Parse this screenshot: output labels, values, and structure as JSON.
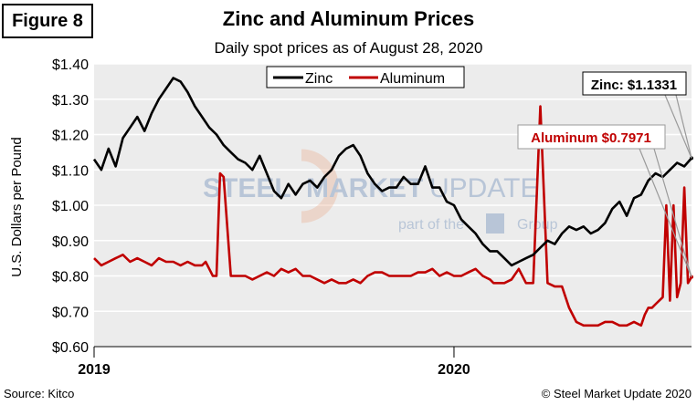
{
  "figure_label": "Figure 8",
  "source": "Source: Kitco",
  "copyright": "© Steel Market Update 2020",
  "watermark": {
    "brand_a": "STEEL",
    "brand_b": "MARKET",
    "brand_c": "UPDATE",
    "tagline_a": "part of the",
    "tagline_b": "Group"
  },
  "colors": {
    "zinc": "#000000",
    "aluminum": "#c00000",
    "plot_bg": "#ececec"
  },
  "chart_data": {
    "type": "line",
    "title": "Zinc and Aluminum Prices",
    "subtitle": "Daily spot prices as of August 28, 2020",
    "ylabel": "U.S. Dollars per Pound",
    "xlabel": "",
    "ylim": [
      0.6,
      1.4
    ],
    "xlim": [
      2019.0,
      2020.66
    ],
    "y_ticks": [
      0.6,
      0.7,
      0.8,
      0.9,
      1.0,
      1.1,
      1.2,
      1.3,
      1.4
    ],
    "y_tick_labels": [
      "$0.60",
      "$0.70",
      "$0.80",
      "$0.90",
      "$1.00",
      "$1.10",
      "$1.20",
      "$1.30",
      "$1.40"
    ],
    "x_ticks": [
      2019.0,
      2020.0
    ],
    "x_tick_labels": [
      "2019",
      "2020"
    ],
    "legend": {
      "position": "top-center",
      "entries": [
        "Zinc",
        "Aluminum"
      ]
    },
    "annotations": [
      {
        "text": "Zinc: $1.1331",
        "series": "Zinc",
        "value": 1.1331
      },
      {
        "text": "Aluminum $0.7971",
        "series": "Aluminum",
        "value": 0.7971
      }
    ],
    "series": [
      {
        "name": "Zinc",
        "x": [
          2019.0,
          2019.02,
          2019.04,
          2019.06,
          2019.08,
          2019.1,
          2019.12,
          2019.14,
          2019.16,
          2019.18,
          2019.2,
          2019.22,
          2019.24,
          2019.26,
          2019.28,
          2019.3,
          2019.32,
          2019.34,
          2019.36,
          2019.38,
          2019.4,
          2019.42,
          2019.44,
          2019.46,
          2019.48,
          2019.5,
          2019.52,
          2019.54,
          2019.56,
          2019.58,
          2019.6,
          2019.62,
          2019.64,
          2019.66,
          2019.68,
          2019.7,
          2019.72,
          2019.74,
          2019.76,
          2019.78,
          2019.8,
          2019.82,
          2019.84,
          2019.86,
          2019.88,
          2019.9,
          2019.92,
          2019.94,
          2019.96,
          2019.98,
          2020.0,
          2020.02,
          2020.04,
          2020.06,
          2020.08,
          2020.1,
          2020.12,
          2020.14,
          2020.16,
          2020.18,
          2020.2,
          2020.22,
          2020.24,
          2020.26,
          2020.28,
          2020.3,
          2020.32,
          2020.34,
          2020.36,
          2020.38,
          2020.4,
          2020.42,
          2020.44,
          2020.46,
          2020.48,
          2020.5,
          2020.52,
          2020.54,
          2020.56,
          2020.58,
          2020.6,
          2020.62,
          2020.64,
          2020.66
        ],
        "values": [
          1.13,
          1.1,
          1.16,
          1.11,
          1.19,
          1.22,
          1.25,
          1.21,
          1.26,
          1.3,
          1.33,
          1.36,
          1.35,
          1.32,
          1.28,
          1.25,
          1.22,
          1.2,
          1.17,
          1.15,
          1.13,
          1.12,
          1.1,
          1.14,
          1.09,
          1.04,
          1.02,
          1.06,
          1.03,
          1.06,
          1.07,
          1.05,
          1.08,
          1.1,
          1.14,
          1.16,
          1.17,
          1.14,
          1.09,
          1.06,
          1.04,
          1.05,
          1.05,
          1.08,
          1.06,
          1.06,
          1.11,
          1.05,
          1.05,
          1.01,
          1.0,
          0.96,
          0.94,
          0.92,
          0.89,
          0.87,
          0.87,
          0.85,
          0.83,
          0.84,
          0.85,
          0.86,
          0.88,
          0.9,
          0.89,
          0.92,
          0.94,
          0.93,
          0.94,
          0.92,
          0.93,
          0.95,
          0.99,
          1.01,
          0.97,
          1.02,
          1.03,
          1.07,
          1.09,
          1.08,
          1.1,
          1.12,
          1.11,
          1.1331
        ]
      },
      {
        "name": "Aluminum",
        "x": [
          2019.0,
          2019.02,
          2019.04,
          2019.06,
          2019.08,
          2019.1,
          2019.12,
          2019.14,
          2019.16,
          2019.18,
          2019.2,
          2019.22,
          2019.24,
          2019.26,
          2019.28,
          2019.3,
          2019.31,
          2019.32,
          2019.33,
          2019.34,
          2019.35,
          2019.36,
          2019.38,
          2019.4,
          2019.42,
          2019.44,
          2019.46,
          2019.48,
          2019.5,
          2019.52,
          2019.54,
          2019.56,
          2019.58,
          2019.6,
          2019.62,
          2019.64,
          2019.66,
          2019.68,
          2019.7,
          2019.72,
          2019.74,
          2019.76,
          2019.78,
          2019.8,
          2019.82,
          2019.84,
          2019.86,
          2019.88,
          2019.9,
          2019.92,
          2019.94,
          2019.96,
          2019.98,
          2020.0,
          2020.02,
          2020.04,
          2020.06,
          2020.08,
          2020.1,
          2020.11,
          2020.12,
          2020.13,
          2020.14,
          2020.16,
          2020.18,
          2020.2,
          2020.22,
          2020.24,
          2020.26,
          2020.28,
          2020.3,
          2020.32,
          2020.34,
          2020.36,
          2020.38,
          2020.4,
          2020.42,
          2020.44,
          2020.46,
          2020.48,
          2020.5,
          2020.52,
          2020.53,
          2020.54,
          2020.55,
          2020.56,
          2020.58,
          2020.59,
          2020.6,
          2020.61,
          2020.62,
          2020.63,
          2020.64,
          2020.65,
          2020.66
        ],
        "values": [
          0.85,
          0.83,
          0.84,
          0.85,
          0.86,
          0.84,
          0.85,
          0.84,
          0.83,
          0.85,
          0.84,
          0.84,
          0.83,
          0.84,
          0.83,
          0.83,
          0.84,
          0.82,
          0.8,
          0.8,
          1.09,
          1.08,
          0.8,
          0.8,
          0.8,
          0.79,
          0.8,
          0.81,
          0.8,
          0.82,
          0.81,
          0.82,
          0.8,
          0.8,
          0.79,
          0.78,
          0.79,
          0.78,
          0.78,
          0.79,
          0.78,
          0.8,
          0.81,
          0.81,
          0.8,
          0.8,
          0.8,
          0.8,
          0.81,
          0.81,
          0.82,
          0.8,
          0.81,
          0.8,
          0.8,
          0.81,
          0.82,
          0.8,
          0.79,
          0.78,
          0.78,
          0.78,
          0.78,
          0.79,
          0.82,
          0.78,
          0.78,
          1.28,
          0.78,
          0.77,
          0.77,
          0.71,
          0.67,
          0.66,
          0.66,
          0.66,
          0.67,
          0.67,
          0.66,
          0.66,
          0.67,
          0.66,
          0.69,
          0.71,
          0.71,
          0.72,
          0.74,
          1.0,
          0.73,
          1.0,
          0.74,
          0.78,
          1.05,
          0.78,
          0.7971
        ]
      }
    ]
  }
}
